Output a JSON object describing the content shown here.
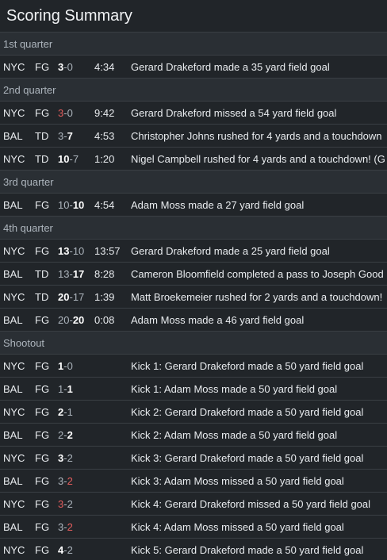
{
  "title": "Scoring Summary",
  "periods": [
    {
      "label": "1st quarter",
      "plays": [
        {
          "team": "NYC",
          "type": "FG",
          "away": "3",
          "home": "0",
          "emph": "away",
          "time": "4:34",
          "desc": "Gerard Drakeford made a 35 yard field goal"
        }
      ]
    },
    {
      "label": "2nd quarter",
      "plays": [
        {
          "team": "NYC",
          "type": "FG",
          "away": "3",
          "home": "0",
          "emph": "away-miss",
          "time": "9:42",
          "desc": "Gerard Drakeford missed a 54 yard field goal"
        },
        {
          "team": "BAL",
          "type": "TD",
          "away": "3",
          "home": "7",
          "emph": "home",
          "time": "4:53",
          "desc": "Christopher Johns rushed for 4 yards and a touchdown"
        },
        {
          "team": "NYC",
          "type": "TD",
          "away": "10",
          "home": "7",
          "emph": "away",
          "time": "1:20",
          "desc": "Nigel Campbell rushed for 4 yards and a touchdown! (G"
        }
      ]
    },
    {
      "label": "3rd quarter",
      "plays": [
        {
          "team": "BAL",
          "type": "FG",
          "away": "10",
          "home": "10",
          "emph": "home",
          "time": "4:54",
          "desc": "Adam Moss made a 27 yard field goal"
        }
      ]
    },
    {
      "label": "4th quarter",
      "plays": [
        {
          "team": "NYC",
          "type": "FG",
          "away": "13",
          "home": "10",
          "emph": "away",
          "time": "13:57",
          "desc": "Gerard Drakeford made a 25 yard field goal"
        },
        {
          "team": "BAL",
          "type": "TD",
          "away": "13",
          "home": "17",
          "emph": "home",
          "time": "8:28",
          "desc": "Cameron Bloomfield completed a pass to Joseph Good"
        },
        {
          "team": "NYC",
          "type": "TD",
          "away": "20",
          "home": "17",
          "emph": "away",
          "time": "1:39",
          "desc": "Matt Broekemeier rushed for 2 yards and a touchdown!"
        },
        {
          "team": "BAL",
          "type": "FG",
          "away": "20",
          "home": "20",
          "emph": "home",
          "time": "0:08",
          "desc": "Adam Moss made a 46 yard field goal"
        }
      ]
    },
    {
      "label": "Shootout",
      "plays": [
        {
          "team": "NYC",
          "type": "FG",
          "away": "1",
          "home": "0",
          "emph": "away",
          "time": "",
          "desc": "Kick 1: Gerard Drakeford made a 50 yard field goal"
        },
        {
          "team": "BAL",
          "type": "FG",
          "away": "1",
          "home": "1",
          "emph": "home",
          "time": "",
          "desc": "Kick 1: Adam Moss made a 50 yard field goal"
        },
        {
          "team": "NYC",
          "type": "FG",
          "away": "2",
          "home": "1",
          "emph": "away",
          "time": "",
          "desc": "Kick 2: Gerard Drakeford made a 50 yard field goal"
        },
        {
          "team": "BAL",
          "type": "FG",
          "away": "2",
          "home": "2",
          "emph": "home",
          "time": "",
          "desc": "Kick 2: Adam Moss made a 50 yard field goal"
        },
        {
          "team": "NYC",
          "type": "FG",
          "away": "3",
          "home": "2",
          "emph": "away",
          "time": "",
          "desc": "Kick 3: Gerard Drakeford made a 50 yard field goal"
        },
        {
          "team": "BAL",
          "type": "FG",
          "away": "3",
          "home": "2",
          "emph": "home-miss",
          "time": "",
          "desc": "Kick 3: Adam Moss missed a 50 yard field goal"
        },
        {
          "team": "NYC",
          "type": "FG",
          "away": "3",
          "home": "2",
          "emph": "away-miss",
          "time": "",
          "desc": "Kick 4: Gerard Drakeford missed a 50 yard field goal"
        },
        {
          "team": "BAL",
          "type": "FG",
          "away": "3",
          "home": "2",
          "emph": "home-miss",
          "time": "",
          "desc": "Kick 4: Adam Moss missed a 50 yard field goal"
        },
        {
          "team": "NYC",
          "type": "FG",
          "away": "4",
          "home": "2",
          "emph": "away",
          "time": "",
          "desc": "Kick 5: Gerard Drakeford made a 50 yard field goal"
        }
      ]
    }
  ],
  "colors": {
    "background": "#212529",
    "period_background": "#2a2f34",
    "miss": "#e35d5d",
    "divider": "#3a3f44"
  }
}
